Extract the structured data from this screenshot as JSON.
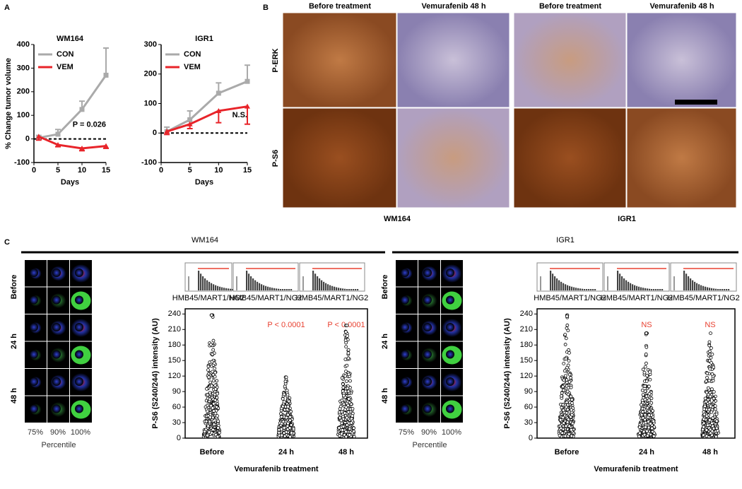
{
  "chart_data": [
    {
      "type": "line",
      "title": "WM164",
      "ylabel": "% Change tumor volume",
      "xlabel": "Days",
      "x": [
        1,
        5,
        10,
        15
      ],
      "xlim": [
        0,
        15
      ],
      "xticks": [
        0,
        5,
        10,
        15
      ],
      "ylim": [
        -100,
        400
      ],
      "yticks": [
        -100,
        0,
        100,
        200,
        300,
        400
      ],
      "annotation": "P = 0.026",
      "series": [
        {
          "name": "CON",
          "color": "#aaaaaa",
          "values": [
            5,
            20,
            125,
            270
          ],
          "errors": [
            10,
            20,
            35,
            115
          ]
        },
        {
          "name": "VEM",
          "color": "#e8242a",
          "values": [
            10,
            -25,
            -40,
            -30
          ],
          "errors": [
            15,
            8,
            10,
            10
          ]
        }
      ]
    },
    {
      "type": "line",
      "title": "IGR1",
      "xlabel": "Days",
      "x": [
        1,
        5,
        10,
        15
      ],
      "xlim": [
        0,
        15
      ],
      "xticks": [
        0,
        5,
        10,
        15
      ],
      "ylim": [
        -100,
        300
      ],
      "yticks": [
        -100,
        0,
        100,
        200,
        300
      ],
      "annotation": "N.S.",
      "series": [
        {
          "name": "CON",
          "color": "#aaaaaa",
          "values": [
            5,
            45,
            135,
            175
          ],
          "errors": [
            15,
            30,
            35,
            55
          ]
        },
        {
          "name": "VEM",
          "color": "#e8242a",
          "values": [
            5,
            30,
            75,
            90
          ],
          "errors": [
            10,
            15,
            40,
            60
          ]
        }
      ]
    },
    {
      "type": "scatter",
      "ylabel": "P-S6 (S240/244) intensity (AU)",
      "xlabel": "Vemurafenib treatment",
      "categories": [
        "Before",
        "24 h",
        "48 h"
      ],
      "ylim": [
        0,
        250
      ],
      "yticks": [
        0,
        30,
        60,
        90,
        120,
        150,
        180,
        210,
        240
      ],
      "annotations": [
        null,
        "P < 0.0001",
        "P < 0.0001"
      ],
      "inset_label": "HMB45/MART1/NG2"
    },
    {
      "type": "scatter",
      "ylabel": "P-S6 (S240/244) intensity (AU)",
      "xlabel": "Vemurafenib treatment",
      "categories": [
        "Before",
        "24 h",
        "48 h"
      ],
      "ylim": [
        0,
        250
      ],
      "yticks": [
        0,
        30,
        60,
        90,
        120,
        150,
        180,
        210,
        240
      ],
      "annotations": [
        null,
        "NS",
        "NS"
      ],
      "inset_label": "HMB45/MART1/NG2"
    }
  ],
  "figure": {
    "panels": [
      "A",
      "B",
      "C"
    ],
    "b": {
      "columns": [
        "Before treatment",
        "Vemurafenib 48 h",
        "Before treatment",
        "Vemurafenib 48 h"
      ],
      "rows": [
        "P-ERK",
        "P-S6"
      ],
      "lines": [
        "WM164",
        "IGR1"
      ]
    },
    "c": {
      "headers": [
        "WM164",
        "IGR1"
      ],
      "rows": [
        "Before",
        "24 h",
        "48 h"
      ],
      "percentiles": [
        "75%",
        "90%",
        "100%"
      ],
      "percentile_label": "Percentile"
    }
  }
}
